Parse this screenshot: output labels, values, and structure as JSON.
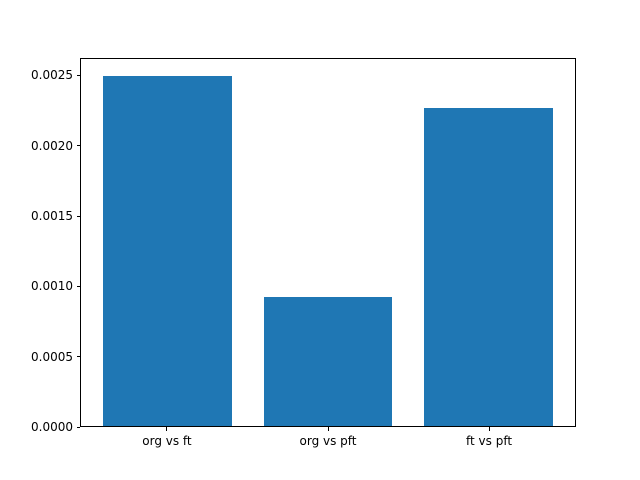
{
  "figure": {
    "background": "#ffffff",
    "spine_color": "#000000",
    "text_color": "#000000"
  },
  "chart_data": {
    "type": "bar",
    "title": "",
    "xlabel": "",
    "ylabel": "",
    "categories": [
      "org vs ft",
      "org vs pft",
      "ft vs pft"
    ],
    "values": [
      0.0025,
      0.00092,
      0.00227
    ],
    "bar_color": "#1f77b4",
    "bar_width": 0.8,
    "xlim": [
      -0.54,
      2.54
    ],
    "ylim": [
      0,
      0.002625
    ],
    "ytick_values": [
      0.0,
      0.0005,
      0.001,
      0.0015,
      0.002,
      0.0025
    ],
    "ytick_labels": [
      "0.0000",
      "0.0005",
      "0.0010",
      "0.0015",
      "0.0020",
      "0.0025"
    ],
    "grid": false,
    "legend": null
  }
}
